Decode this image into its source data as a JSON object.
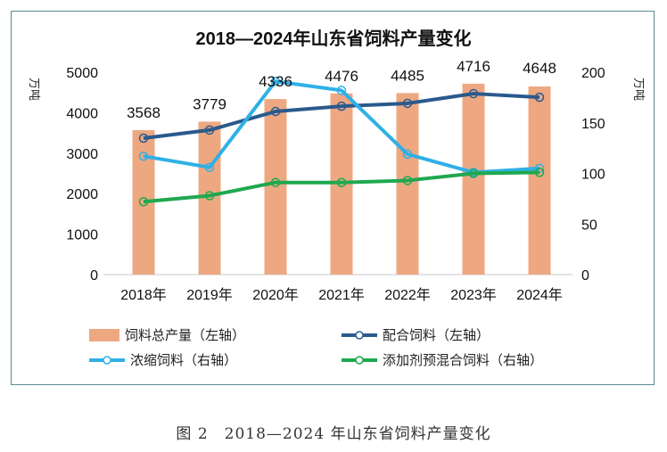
{
  "caption": "图 2　2018—2024 年山东省饲料产量变化",
  "chart_data": {
    "type": "bar+line",
    "title": "2018—2024年山东省饲料产量变化",
    "categories": [
      "2018年",
      "2019年",
      "2020年",
      "2021年",
      "2022年",
      "2023年",
      "2024年"
    ],
    "left_axis": {
      "label": "万吨",
      "ylim": [
        0,
        5000
      ],
      "ticks": [
        0,
        1000,
        2000,
        3000,
        4000,
        5000
      ]
    },
    "right_axis": {
      "label": "万吨",
      "ylim": [
        0,
        200
      ],
      "ticks": [
        0,
        50,
        100,
        150,
        200
      ]
    },
    "series": [
      {
        "name": "饲料总产量（左轴）",
        "type": "bar",
        "axis": "left",
        "color": "#eda882",
        "values": [
          3568,
          3779,
          4336,
          4476,
          4485,
          4716,
          4648
        ],
        "labels": [
          "3568",
          "3779",
          "4336",
          "4476",
          "4485",
          "4716",
          "4648"
        ]
      },
      {
        "name": "配合饲料（左轴）",
        "type": "line",
        "axis": "left",
        "color": "#2a5a8c",
        "values": [
          3370,
          3570,
          4030,
          4160,
          4230,
          4470,
          4380
        ]
      },
      {
        "name": "浓缩饲料（右轴）",
        "type": "line",
        "axis": "right",
        "color": "#2fb0e6",
        "values": [
          117,
          106,
          191,
          182,
          119,
          101,
          105
        ]
      },
      {
        "name": "添加剂预混合饲料（右轴）",
        "type": "line",
        "axis": "right",
        "color": "#1fa84f",
        "values": [
          72,
          78,
          91,
          91,
          93,
          100,
          101
        ]
      }
    ],
    "legend_position": "bottom",
    "grid": false
  }
}
